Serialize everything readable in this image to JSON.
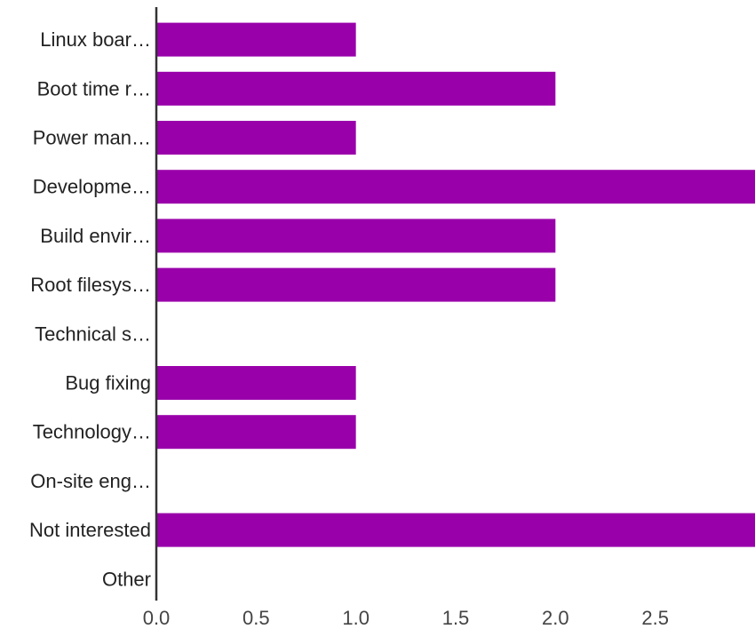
{
  "chart_data": {
    "type": "bar",
    "orientation": "horizontal",
    "categories": [
      "Linux boar…",
      "Boot time r…",
      "Power man…",
      "Developme…",
      "Build envir…",
      "Root filesys…",
      "Technical s…",
      "Bug fixing",
      "Technology…",
      "On-site eng…",
      "Not interested",
      "Other"
    ],
    "values": [
      1,
      2,
      1,
      3,
      2,
      2,
      0,
      1,
      1,
      0,
      3,
      0
    ],
    "xlim": [
      0,
      3
    ],
    "xticks": [
      "0.0",
      "0.5",
      "1.0",
      "1.5",
      "2.0",
      "2.5"
    ],
    "bar_color": "#9900aa",
    "axis_color": "#333333",
    "grid": false,
    "legend": "none"
  }
}
